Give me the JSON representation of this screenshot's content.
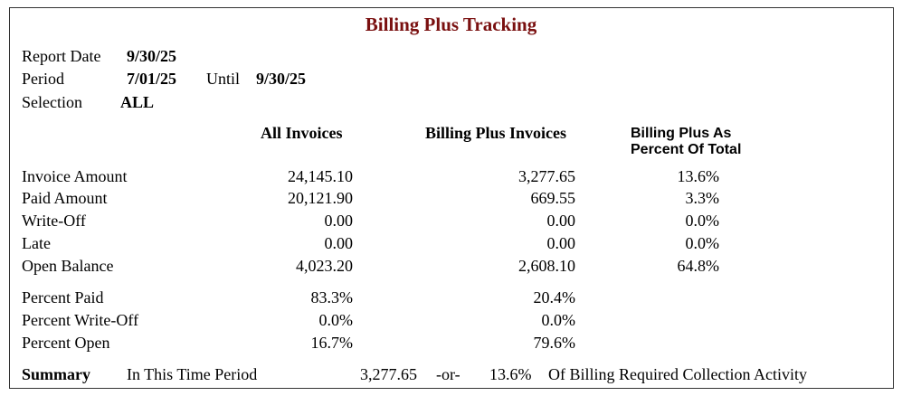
{
  "header": {
    "title": "Billing Plus Tracking",
    "report_date_label": "Report Date",
    "report_date": "9/30/25",
    "period_label": "Period",
    "period_start": "7/01/25",
    "until_label": "Until",
    "period_end": "9/30/25",
    "selection_label": "Selection",
    "selection": "ALL"
  },
  "table": {
    "columns": [
      "All Invoices",
      "Billing Plus Invoices",
      "Billing Plus As",
      "Percent Of Total"
    ],
    "rows": [
      [
        "Invoice Amount",
        "24,145.10",
        "3,277.65",
        "13.6%"
      ],
      [
        "Paid Amount",
        "20,121.90",
        "669.55",
        "3.3%"
      ],
      [
        "Write-Off",
        "0.00",
        "0.00",
        "0.0%"
      ],
      [
        "Late",
        "0.00",
        "0.00",
        "0.0%"
      ],
      [
        "Open Balance",
        "4,023.20",
        "2,608.10",
        "64.8%"
      ]
    ],
    "percent_rows": [
      [
        "Percent Paid",
        "83.3%",
        "20.4%"
      ],
      [
        "Percent Write-Off",
        "0.0%",
        "0.0%"
      ],
      [
        "Percent Open",
        "16.7%",
        "79.6%"
      ]
    ]
  },
  "summary": {
    "label": "Summary",
    "period_text": "In This Time Period",
    "amount": "3,277.65",
    "or": "-or-",
    "percent": "13.6%",
    "text": "Of Billing Required Collection Activity"
  }
}
